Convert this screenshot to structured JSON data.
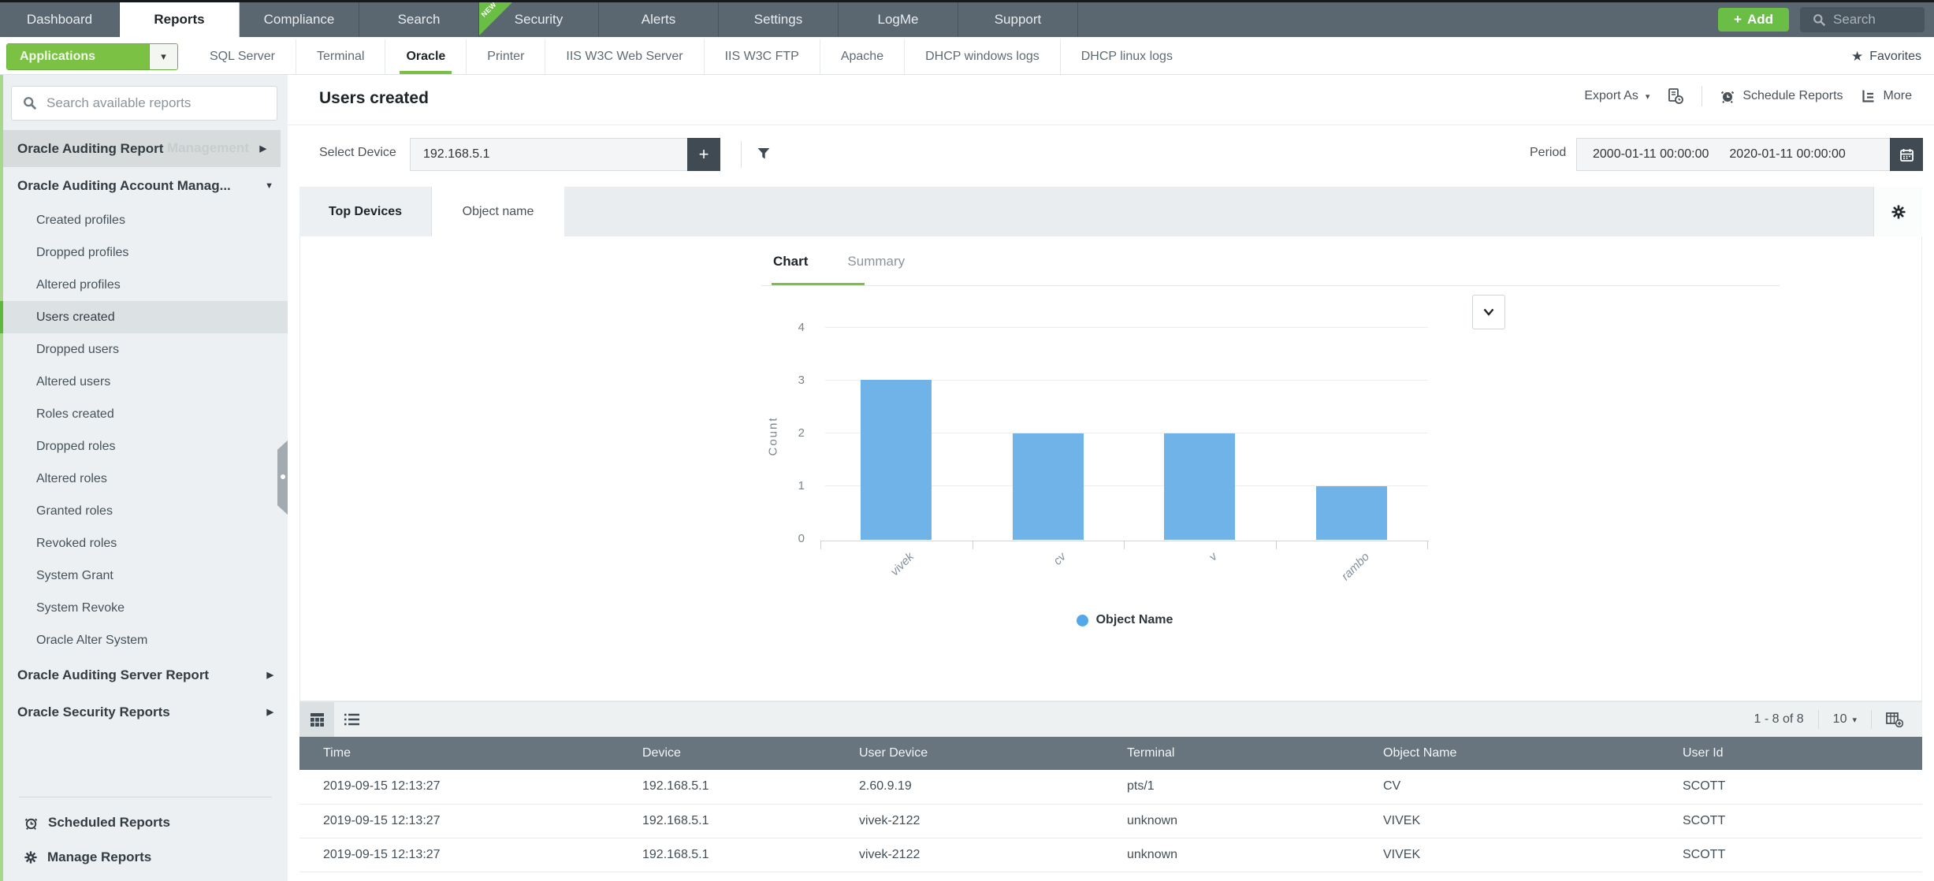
{
  "top_nav": {
    "items": [
      "Dashboard",
      "Reports",
      "Compliance",
      "Search",
      "Security",
      "Alerts",
      "Settings",
      "LogMe",
      "Support"
    ],
    "active_item": "Reports",
    "new_badge": "NEW",
    "add_label": "Add",
    "search_label": "Search"
  },
  "app_nav": {
    "dropdown_label": "Applications",
    "tabs": [
      "SQL Server",
      "Terminal",
      "Oracle",
      "Printer",
      "IIS W3C Web Server",
      "IIS W3C FTP",
      "Apache",
      "DHCP windows logs",
      "DHCP linux logs"
    ],
    "active_tab": "Oracle",
    "favorites_label": "Favorites"
  },
  "sidebar": {
    "search_placeholder": "Search available reports",
    "groups": [
      {
        "label": "Oracle Auditing Report",
        "ghost": "Management",
        "expanded": false
      },
      {
        "label": "Oracle Auditing Account Manag...",
        "expanded": true,
        "items": [
          "Created profiles",
          "Dropped profiles",
          "Altered profiles",
          "Users created",
          "Dropped users",
          "Altered users",
          "Roles created",
          "Dropped roles",
          "Altered roles",
          "Granted roles",
          "Revoked roles",
          "System Grant",
          "System Revoke",
          "Oracle Alter System"
        ]
      },
      {
        "label": "Oracle Auditing Server Report",
        "expanded": false
      },
      {
        "label": "Oracle Security Reports",
        "expanded": false
      }
    ],
    "selected_item": "Users created",
    "footer": {
      "scheduled": "Scheduled Reports",
      "manage": "Manage Reports"
    }
  },
  "report": {
    "title": "Users created",
    "export_label": "Export As",
    "schedule_label": "Schedule Reports",
    "more_label": "More",
    "select_device_label": "Select Device",
    "device_value": "192.168.5.1",
    "period_label": "Period",
    "period_from": "2000-01-11 00:00:00",
    "period_to": "2020-01-11 00:00:00",
    "tabs": [
      "Top Devices",
      "Object name"
    ],
    "active_tab": "Object name",
    "chart_tabs": [
      "Chart",
      "Summary"
    ],
    "active_chart_tab": "Chart"
  },
  "chart_data": {
    "type": "bar",
    "categories": [
      "vivek",
      "cv",
      "v",
      "rambo"
    ],
    "values": [
      3,
      2,
      2,
      1
    ],
    "title": "",
    "xlabel": "",
    "ylabel": "Count",
    "ylim": [
      0,
      4
    ],
    "yticks": [
      0,
      1,
      2,
      3,
      4
    ],
    "grid": true,
    "legend_position": "bottom",
    "legend": [
      {
        "label": "Object Name",
        "color": "#6fb3e8"
      }
    ],
    "bar_color": "#6fb3e8"
  },
  "table": {
    "pagination": "1 - 8 of 8",
    "page_size": "10",
    "columns": [
      "Time",
      "Device",
      "User Device",
      "Terminal",
      "Object Name",
      "User Id"
    ],
    "rows": [
      [
        "2019-09-15 12:13:27",
        "192.168.5.1",
        "2.60.9.19",
        "pts/1",
        "CV",
        "SCOTT"
      ],
      [
        "2019-09-15 12:13:27",
        "192.168.5.1",
        "vivek-2122",
        "unknown",
        "VIVEK",
        "SCOTT"
      ],
      [
        "2019-09-15 12:13:27",
        "192.168.5.1",
        "vivek-2122",
        "unknown",
        "VIVEK",
        "SCOTT"
      ]
    ]
  },
  "icons": {
    "plus": "+",
    "star": "★",
    "caret_down": "▾",
    "arrow_right": "▶",
    "arrow_down": "▼"
  }
}
